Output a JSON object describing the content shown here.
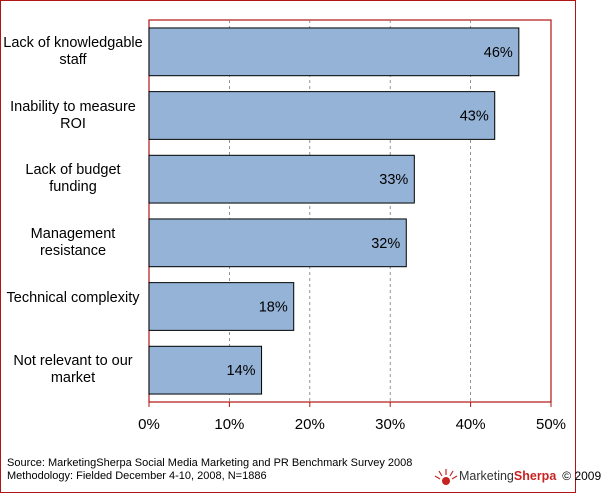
{
  "chart_data": {
    "type": "bar",
    "orientation": "horizontal",
    "categories": [
      "Lack of knowledgable staff",
      "Inability to measure ROI",
      "Lack of budget funding",
      "Management resistance",
      "Technical complexity",
      "Not relevant to our market"
    ],
    "values": [
      46,
      43,
      33,
      32,
      18,
      14
    ],
    "value_labels": [
      "46%",
      "43%",
      "33%",
      "32%",
      "18%",
      "14%"
    ],
    "xlim": [
      0,
      50
    ],
    "x_ticks": [
      0,
      10,
      20,
      30,
      40,
      50
    ],
    "x_tick_labels": [
      "0%",
      "10%",
      "20%",
      "30%",
      "40%",
      "50%"
    ],
    "grid": "vertical dashed",
    "bar_color": "#95b3d7",
    "plot_border_color": "#b01515"
  },
  "footer": {
    "source": "Source: MarketingSherpa Social Media Marketing and PR Benchmark Survey 2008",
    "methodology": "Methodology: Fielded December 4-10, 2008, N=1886"
  },
  "brand": {
    "name_part1": "Marketing",
    "name_part2": "Sherpa",
    "copyright": "© 2009",
    "logo_icon": "sun-logo-icon"
  }
}
